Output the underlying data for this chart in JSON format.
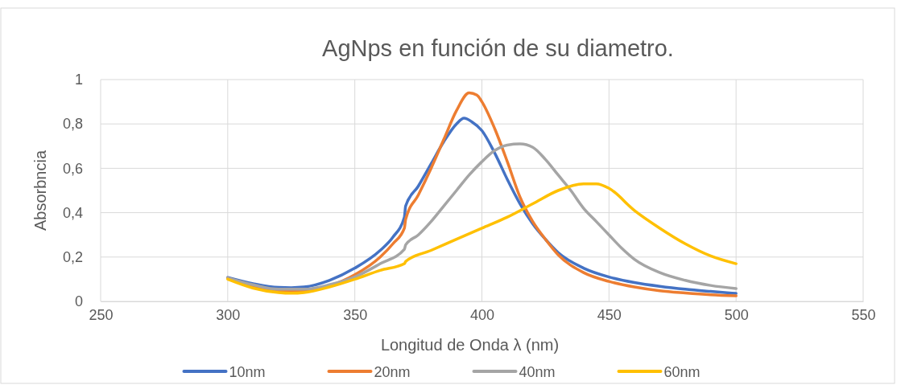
{
  "chart_data": {
    "type": "line",
    "title": "AgNps en función de su diametro.",
    "xlabel": "Longitud de Onda λ (nm)",
    "ylabel": "Absorbncia",
    "xlim": [
      250,
      550
    ],
    "xticks": [
      250,
      300,
      350,
      400,
      450,
      500,
      550
    ],
    "ylim": [
      0,
      1
    ],
    "yticks": [
      0,
      {
        "value": 0.2,
        "label": "0,2"
      },
      {
        "value": 0.4,
        "label": "0,4"
      },
      {
        "value": 0.6,
        "label": "0,6"
      },
      {
        "value": 0.8,
        "label": "0,8"
      },
      1
    ],
    "grid": true,
    "legend": "bottom",
    "marker": "none",
    "line_style": "solid",
    "series": [
      {
        "name": "10nm",
        "color": "#4472c4",
        "x": [
          300,
          310,
          320,
          325,
          330,
          340,
          350,
          360,
          365,
          369.5,
          370,
          375,
          380,
          385,
          390,
          393,
          396,
          400,
          405,
          410,
          415,
          420,
          425,
          430,
          440,
          450,
          460,
          470,
          480,
          490,
          500
        ],
        "values": [
          0.108,
          0.08,
          0.063,
          0.062,
          0.065,
          0.095,
          0.15,
          0.23,
          0.29,
          0.38,
          0.43,
          0.52,
          0.62,
          0.72,
          0.8,
          0.826,
          0.81,
          0.77,
          0.67,
          0.55,
          0.44,
          0.35,
          0.28,
          0.22,
          0.15,
          0.11,
          0.085,
          0.068,
          0.055,
          0.045,
          0.036
        ]
      },
      {
        "name": "20nm",
        "color": "#ed7d31",
        "x": [
          300,
          310,
          320,
          325,
          330,
          340,
          350,
          360,
          365,
          369.5,
          370,
          375,
          380,
          385,
          390,
          395,
          398,
          400,
          405,
          410,
          415,
          420,
          425,
          430,
          440,
          450,
          460,
          470,
          480,
          490,
          500
        ],
        "values": [
          0.105,
          0.07,
          0.05,
          0.048,
          0.05,
          0.07,
          0.12,
          0.2,
          0.26,
          0.33,
          0.37,
          0.48,
          0.6,
          0.73,
          0.86,
          0.94,
          0.93,
          0.9,
          0.78,
          0.63,
          0.47,
          0.36,
          0.28,
          0.21,
          0.13,
          0.09,
          0.065,
          0.048,
          0.038,
          0.03,
          0.025
        ]
      },
      {
        "name": "40nm",
        "color": "#a5a5a5",
        "x": [
          300,
          310,
          320,
          330,
          340,
          350,
          360,
          369.5,
          370,
          375,
          380,
          385,
          390,
          395,
          400,
          405,
          410,
          415,
          420,
          425,
          430,
          435,
          440,
          445,
          450,
          455,
          460,
          470,
          480,
          490,
          500
        ],
        "values": [
          0.105,
          0.075,
          0.055,
          0.055,
          0.075,
          0.11,
          0.17,
          0.235,
          0.255,
          0.3,
          0.36,
          0.43,
          0.5,
          0.57,
          0.63,
          0.68,
          0.705,
          0.71,
          0.695,
          0.64,
          0.57,
          0.5,
          0.42,
          0.36,
          0.3,
          0.24,
          0.19,
          0.13,
          0.095,
          0.072,
          0.058
        ]
      },
      {
        "name": "60nm",
        "color": "#ffc000",
        "x": [
          300,
          310,
          320,
          325,
          330,
          340,
          350,
          360,
          369.5,
          370,
          380,
          390,
          400,
          410,
          420,
          430,
          440,
          445,
          450,
          460,
          470,
          480,
          490,
          500
        ],
        "values": [
          0.1,
          0.06,
          0.04,
          0.037,
          0.04,
          0.065,
          0.1,
          0.14,
          0.17,
          0.18,
          0.23,
          0.28,
          0.33,
          0.38,
          0.44,
          0.5,
          0.53,
          0.53,
          0.51,
          0.41,
          0.33,
          0.26,
          0.205,
          0.17
        ]
      }
    ]
  }
}
